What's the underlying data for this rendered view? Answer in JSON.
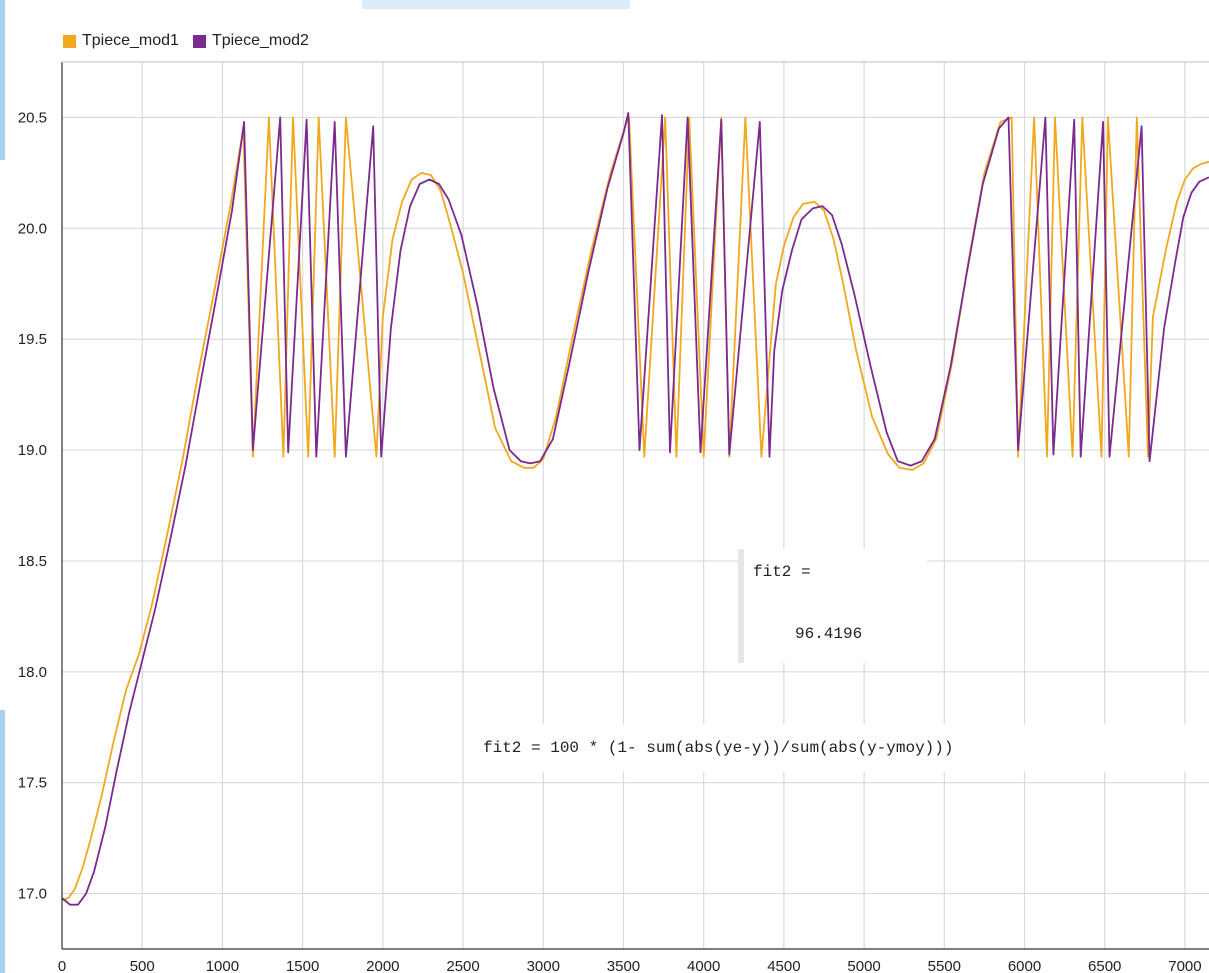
{
  "legend": [
    {
      "name": "Tpiece_mod1",
      "color": "#f2a81d"
    },
    {
      "name": "Tpiece_mod2",
      "color": "#7b2a8e"
    }
  ],
  "annotations": {
    "fit_name": "fit2 =",
    "fit_value": "96.4196",
    "formula": "fit2 = 100 * (1- sum(abs(ye-y))/sum(abs(y-ymoy)))"
  },
  "chart_data": {
    "type": "line",
    "title": "",
    "xlabel": "",
    "ylabel": "",
    "xlim": [
      0,
      7150
    ],
    "ylim": [
      16.75,
      20.75
    ],
    "xticks": [
      0,
      500,
      1000,
      1500,
      2000,
      2500,
      3000,
      3500,
      4000,
      4500,
      5000,
      5500,
      6000,
      6500,
      7000
    ],
    "yticks": [
      17.0,
      17.5,
      18.0,
      18.5,
      19.0,
      19.5,
      20.0,
      20.5
    ],
    "grid": true,
    "legend_position": "top-left",
    "series": [
      {
        "name": "Tpiece_mod1",
        "color": "#f2a81d",
        "x": [
          0,
          40,
          80,
          130,
          180,
          250,
          320,
          400,
          480,
          560,
          650,
          750,
          850,
          950,
          1050,
          1130,
          1190,
          1290,
          1380,
          1440,
          1535,
          1600,
          1700,
          1770,
          1960,
          2000,
          2060,
          2120,
          2180,
          2240,
          2300,
          2360,
          2420,
          2500,
          2600,
          2700,
          2800,
          2880,
          2940,
          3000,
          3080,
          3180,
          3300,
          3420,
          3520,
          3535,
          3630,
          3760,
          3830,
          3910,
          4000,
          4110,
          4160,
          4260,
          4360,
          4420,
          4450,
          4500,
          4560,
          4620,
          4690,
          4750,
          4810,
          4870,
          4950,
          5050,
          5150,
          5220,
          5300,
          5370,
          5450,
          5550,
          5650,
          5750,
          5850,
          5920,
          5960,
          6060,
          6140,
          6190,
          6300,
          6360,
          6480,
          6520,
          6650,
          6700,
          6770,
          6800,
          6880,
          6950,
          7000,
          7050,
          7100,
          7150
        ],
        "y": [
          16.97,
          16.98,
          17.02,
          17.12,
          17.25,
          17.45,
          17.68,
          17.92,
          18.08,
          18.3,
          18.6,
          18.95,
          19.35,
          19.72,
          20.1,
          20.45,
          18.97,
          20.5,
          18.97,
          20.5,
          18.97,
          20.5,
          18.97,
          20.5,
          18.97,
          19.6,
          19.95,
          20.12,
          20.22,
          20.25,
          20.24,
          20.17,
          20.02,
          19.8,
          19.45,
          19.1,
          18.95,
          18.92,
          18.92,
          18.96,
          19.15,
          19.5,
          19.9,
          20.25,
          20.48,
          20.5,
          18.97,
          20.5,
          18.97,
          20.5,
          18.97,
          20.5,
          18.97,
          20.5,
          18.97,
          19.5,
          19.75,
          19.92,
          20.05,
          20.11,
          20.12,
          20.08,
          19.95,
          19.75,
          19.45,
          19.15,
          18.98,
          18.92,
          18.91,
          18.94,
          19.05,
          19.4,
          19.85,
          20.25,
          20.48,
          20.5,
          18.97,
          20.5,
          18.97,
          20.5,
          18.97,
          20.5,
          18.97,
          20.5,
          18.97,
          20.5,
          18.97,
          19.6,
          19.9,
          20.12,
          20.22,
          20.27,
          20.29,
          20.3
        ]
      },
      {
        "name": "Tpiece_mod2",
        "color": "#7b2a8e",
        "x": [
          0,
          50,
          100,
          150,
          200,
          270,
          340,
          420,
          500,
          580,
          670,
          770,
          870,
          970,
          1060,
          1135,
          1190,
          1360,
          1410,
          1525,
          1585,
          1700,
          1770,
          1940,
          1990,
          2050,
          2110,
          2170,
          2230,
          2290,
          2350,
          2410,
          2490,
          2590,
          2690,
          2790,
          2860,
          2920,
          2980,
          3060,
          3160,
          3280,
          3400,
          3500,
          3530,
          3600,
          3740,
          3790,
          3900,
          3980,
          4110,
          4160,
          4350,
          4410,
          4440,
          4490,
          4550,
          4610,
          4680,
          4740,
          4800,
          4860,
          4940,
          5040,
          5140,
          5210,
          5290,
          5360,
          5440,
          5540,
          5640,
          5740,
          5840,
          5900,
          5960,
          6130,
          6180,
          6310,
          6350,
          6490,
          6530,
          6730,
          6780,
          6870,
          6940,
          6990,
          7040,
          7090,
          7150
        ],
        "y": [
          16.98,
          16.95,
          16.95,
          17.0,
          17.1,
          17.3,
          17.55,
          17.82,
          18.05,
          18.28,
          18.58,
          18.93,
          19.33,
          19.72,
          20.08,
          20.48,
          19.0,
          20.5,
          18.99,
          20.49,
          18.97,
          20.48,
          18.97,
          20.46,
          18.97,
          19.55,
          19.9,
          20.1,
          20.2,
          20.22,
          20.2,
          20.13,
          19.97,
          19.65,
          19.28,
          19.0,
          18.95,
          18.94,
          18.95,
          19.05,
          19.38,
          19.8,
          20.18,
          20.43,
          20.52,
          19.0,
          20.51,
          18.99,
          20.5,
          18.99,
          20.49,
          18.98,
          20.48,
          18.97,
          19.45,
          19.72,
          19.9,
          20.04,
          20.09,
          20.1,
          20.06,
          19.93,
          19.7,
          19.38,
          19.08,
          18.95,
          18.93,
          18.95,
          19.05,
          19.38,
          19.8,
          20.2,
          20.45,
          20.5,
          19.0,
          20.5,
          18.98,
          20.49,
          18.97,
          20.48,
          18.97,
          20.46,
          18.95,
          19.55,
          19.85,
          20.05,
          20.16,
          20.21,
          20.23
        ]
      }
    ]
  }
}
